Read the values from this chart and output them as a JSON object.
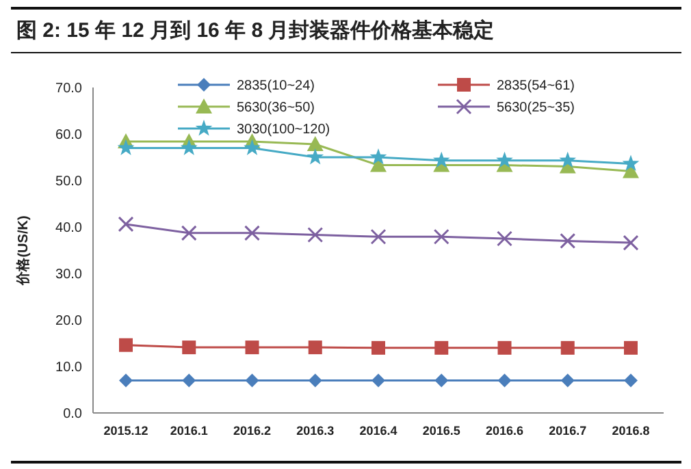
{
  "chart_data": {
    "type": "line",
    "title": "图 2:  15 年 12 月到 16 年 8 月封装器件价格基本稳定",
    "ylabel": "价格(US/K)",
    "categories": [
      "2015.12",
      "2016.1",
      "2016.2",
      "2016.3",
      "2016.4",
      "2016.5",
      "2016.6",
      "2016.7",
      "2016.8"
    ],
    "ylim": [
      0,
      70
    ],
    "yticks": [
      {
        "value": 0,
        "label": "0.0"
      },
      {
        "value": 10,
        "label": "10.0"
      },
      {
        "value": 20,
        "label": "20.0"
      },
      {
        "value": 30,
        "label": "30.0"
      },
      {
        "value": 40,
        "label": "40.0"
      },
      {
        "value": 50,
        "label": "50.0"
      },
      {
        "value": 60,
        "label": "60.0"
      },
      {
        "value": 70,
        "label": "70.0"
      }
    ],
    "legend": "top",
    "grid": false,
    "series": [
      {
        "name": "2835(10~24)",
        "color": "#4a7ebb",
        "marker": "diamond",
        "values": [
          7,
          7,
          7,
          7,
          7,
          7,
          7,
          7,
          7
        ]
      },
      {
        "name": "2835(54~61)",
        "color": "#be4b48",
        "marker": "square",
        "values": [
          14.6,
          14.1,
          14.1,
          14.1,
          14,
          14,
          14,
          14,
          14
        ]
      },
      {
        "name": "5630(36~50)",
        "color": "#98b954",
        "marker": "triangle",
        "values": [
          58.4,
          58.4,
          58.4,
          57.8,
          53.3,
          53.3,
          53.3,
          53,
          52
        ]
      },
      {
        "name": "5630(25~35)",
        "color": "#7d60a0",
        "marker": "cross",
        "values": [
          40.6,
          38.7,
          38.7,
          38.3,
          37.9,
          37.9,
          37.5,
          37,
          36.6
        ]
      },
      {
        "name": "3030(100~120)",
        "color": "#46aac5",
        "marker": "star",
        "values": [
          57,
          57,
          57,
          55,
          55,
          54.3,
          54.3,
          54.3,
          53.6
        ]
      }
    ]
  }
}
